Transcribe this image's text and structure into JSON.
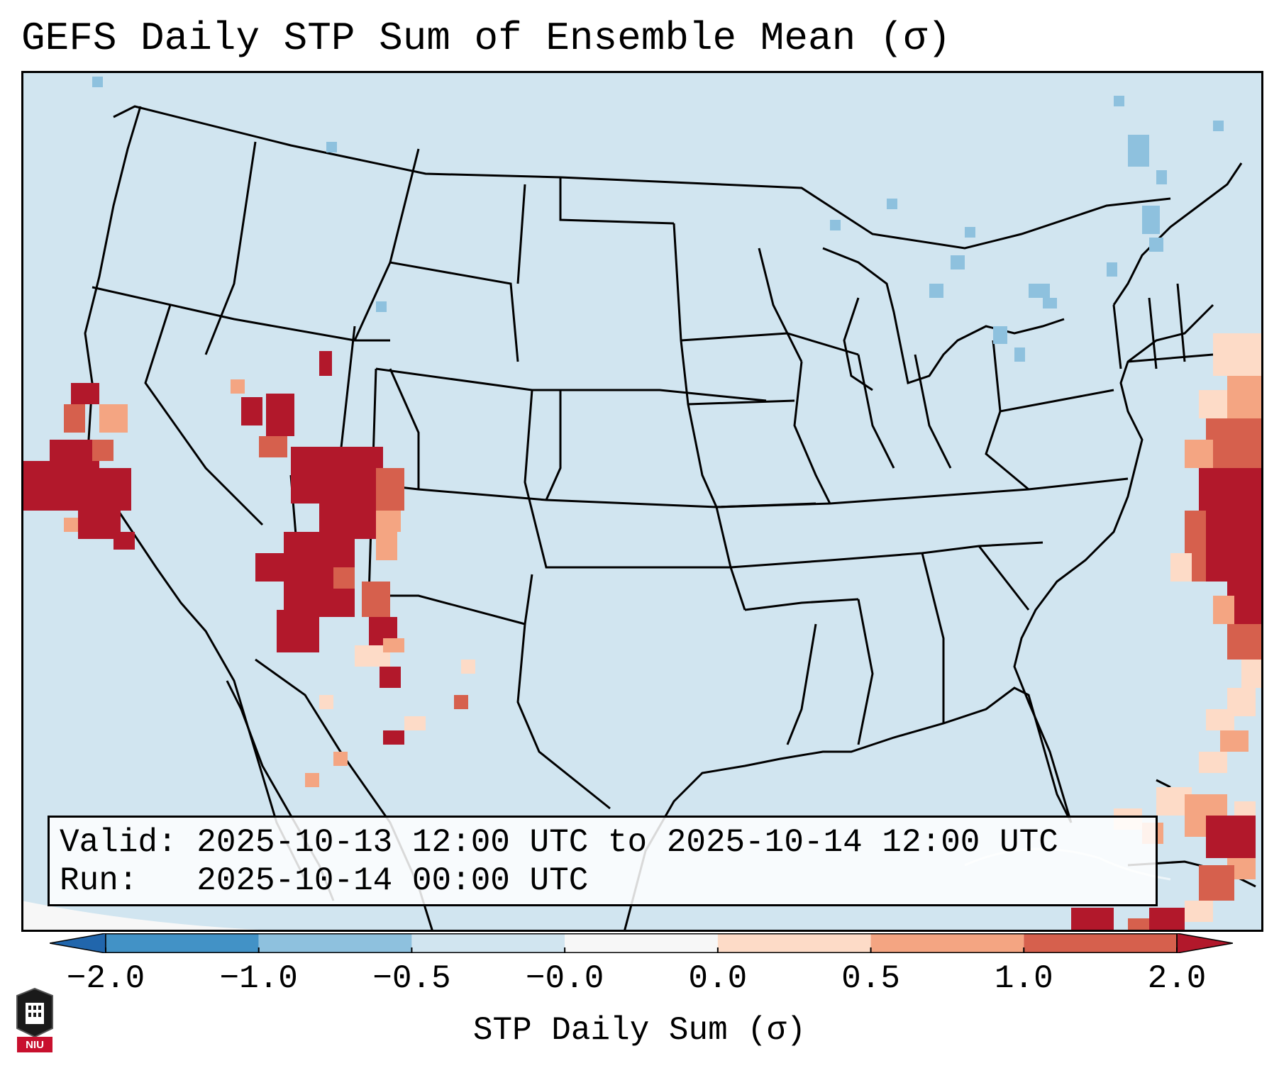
{
  "title": "GEFS Daily STP Sum of Ensemble Mean (σ)",
  "info": {
    "valid_line": "Valid: 2025-10-13 12:00 UTC to 2025-10-14 12:00 UTC",
    "run_line": "Run:   2025-10-14 00:00 UTC"
  },
  "colorbar": {
    "label": "STP Daily Sum (σ)",
    "ticks": [
      "−2.0",
      "−1.0",
      "−0.5",
      "−0.0",
      "0.0",
      "0.5",
      "1.0",
      "2.0"
    ],
    "bin_colors": [
      "#4292c6",
      "#8ec1de",
      "#d1e5f0",
      "#f7f7f7",
      "#fddbc7",
      "#f4a582",
      "#d6604d",
      "#b2182b"
    ],
    "under_color": "#2166ac",
    "over_color": "#b2182b"
  },
  "logo": {
    "text": "NIU"
  },
  "map": {
    "background_color": "#d1e5f0",
    "projection_label": "CONUS Lambert Conformal"
  }
}
